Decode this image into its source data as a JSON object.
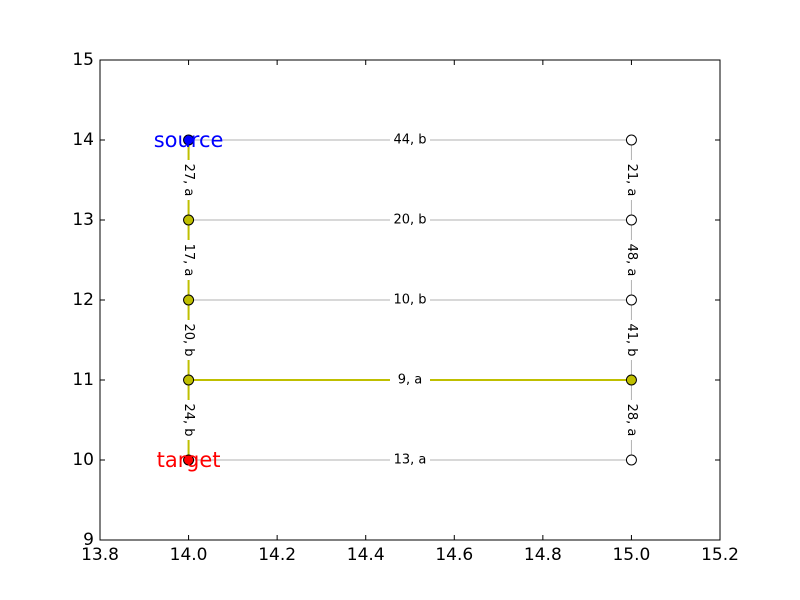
{
  "chart_data": {
    "type": "scatter",
    "title": "",
    "xlabel": "",
    "ylabel": "",
    "xlim": [
      13.8,
      15.2
    ],
    "ylim": [
      9,
      15
    ],
    "grid": false,
    "x_ticks": [
      "13.8",
      "14.0",
      "14.2",
      "14.4",
      "14.6",
      "14.8",
      "15.0",
      "15.2"
    ],
    "y_ticks": [
      "9",
      "10",
      "11",
      "12",
      "13",
      "14",
      "15"
    ],
    "nodes": [
      {
        "id": "n14_14",
        "x": 14,
        "y": 14,
        "fill": "#0000ff",
        "label": "source",
        "label_color": "#0000ff"
      },
      {
        "id": "n14_13",
        "x": 14,
        "y": 13,
        "fill": "#bfbf00"
      },
      {
        "id": "n14_12",
        "x": 14,
        "y": 12,
        "fill": "#bfbf00"
      },
      {
        "id": "n14_11",
        "x": 14,
        "y": 11,
        "fill": "#bfbf00"
      },
      {
        "id": "n14_10",
        "x": 14,
        "y": 10,
        "fill": "#ff0000",
        "label": "target",
        "label_color": "#ff0000"
      },
      {
        "id": "n15_14",
        "x": 15,
        "y": 14,
        "fill": "#ffffff"
      },
      {
        "id": "n15_13",
        "x": 15,
        "y": 13,
        "fill": "#ffffff"
      },
      {
        "id": "n15_12",
        "x": 15,
        "y": 12,
        "fill": "#ffffff"
      },
      {
        "id": "n15_11",
        "x": 15,
        "y": 11,
        "fill": "#bfbf00"
      },
      {
        "id": "n15_10",
        "x": 15,
        "y": 10,
        "fill": "#ffffff"
      }
    ],
    "edges": [
      {
        "from": [
          14,
          14
        ],
        "to": [
          15,
          14
        ],
        "label": "44, b",
        "highlighted": false
      },
      {
        "from": [
          14,
          13
        ],
        "to": [
          15,
          13
        ],
        "label": "20, b",
        "highlighted": false
      },
      {
        "from": [
          14,
          12
        ],
        "to": [
          15,
          12
        ],
        "label": "10, b",
        "highlighted": false
      },
      {
        "from": [
          14,
          11
        ],
        "to": [
          15,
          11
        ],
        "label": "9, a",
        "highlighted": true
      },
      {
        "from": [
          14,
          10
        ],
        "to": [
          15,
          10
        ],
        "label": "13, a",
        "highlighted": false
      },
      {
        "from": [
          14,
          14
        ],
        "to": [
          14,
          13
        ],
        "label": "27, a",
        "highlighted": true
      },
      {
        "from": [
          14,
          13
        ],
        "to": [
          14,
          12
        ],
        "label": "17, a",
        "highlighted": true
      },
      {
        "from": [
          14,
          12
        ],
        "to": [
          14,
          11
        ],
        "label": "20, b",
        "highlighted": true
      },
      {
        "from": [
          14,
          11
        ],
        "to": [
          14,
          10
        ],
        "label": "24, b",
        "highlighted": true
      },
      {
        "from": [
          15,
          14
        ],
        "to": [
          15,
          13
        ],
        "label": "21, a",
        "highlighted": false
      },
      {
        "from": [
          15,
          13
        ],
        "to": [
          15,
          12
        ],
        "label": "48, a",
        "highlighted": false
      },
      {
        "from": [
          15,
          12
        ],
        "to": [
          15,
          11
        ],
        "label": "41, b",
        "highlighted": false
      },
      {
        "from": [
          15,
          11
        ],
        "to": [
          15,
          10
        ],
        "label": "28, a",
        "highlighted": false
      }
    ],
    "colors": {
      "highlight_edge": "#bfbf00",
      "normal_edge": "#b0b0b0"
    }
  }
}
